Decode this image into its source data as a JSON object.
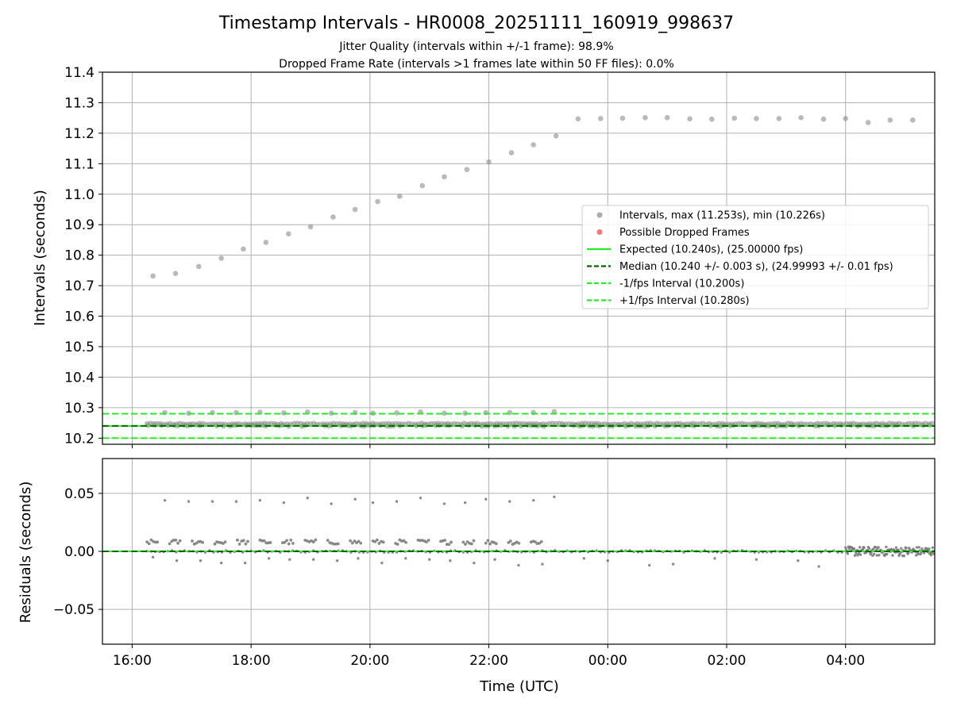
{
  "chart_data": [
    {
      "type": "scatter",
      "title": "Timestamp Intervals - HR0008_20251111_160919_998637",
      "subtitle_lines": [
        "Jitter Quality (intervals within +/-1 frame): 98.9%",
        "Dropped Frame Rate (intervals >1 frames late within 50 FF files): 0.0%"
      ],
      "xlabel": "",
      "ylabel": "Intervals (seconds)",
      "x_unit": "hours since 16:00 UTC",
      "xlim": [
        -0.5,
        13.5
      ],
      "ylim": [
        10.18,
        11.4
      ],
      "yticks": [
        10.2,
        10.3,
        10.4,
        10.5,
        10.6,
        10.7,
        10.8,
        10.9,
        11.0,
        11.1,
        11.2,
        11.3,
        11.4
      ],
      "ytick_labels": [
        "10.2",
        "10.3",
        "10.4",
        "10.5",
        "10.6",
        "10.7",
        "10.8",
        "10.9",
        "11.0",
        "11.1",
        "11.2",
        "11.3",
        "11.4"
      ],
      "grid": true,
      "series": [
        {
          "name": "Intervals, max (11.253s), min (10.226s)",
          "kind": "points",
          "color": "#999999",
          "outlier_points": [
            {
              "x": 0.35,
              "y": 10.732
            },
            {
              "x": 0.73,
              "y": 10.74
            },
            {
              "x": 1.12,
              "y": 10.763
            },
            {
              "x": 1.5,
              "y": 10.79
            },
            {
              "x": 1.87,
              "y": 10.82
            },
            {
              "x": 2.25,
              "y": 10.842
            },
            {
              "x": 2.63,
              "y": 10.87
            },
            {
              "x": 3.0,
              "y": 10.893
            },
            {
              "x": 3.38,
              "y": 10.925
            },
            {
              "x": 3.75,
              "y": 10.95
            },
            {
              "x": 4.13,
              "y": 10.976
            },
            {
              "x": 4.5,
              "y": 10.993
            },
            {
              "x": 4.88,
              "y": 11.028
            },
            {
              "x": 5.25,
              "y": 11.057
            },
            {
              "x": 5.63,
              "y": 11.081
            },
            {
              "x": 6.0,
              "y": 11.106
            },
            {
              "x": 6.38,
              "y": 11.136
            },
            {
              "x": 6.75,
              "y": 11.162
            },
            {
              "x": 7.13,
              "y": 11.191
            },
            {
              "x": 7.5,
              "y": 11.247
            },
            {
              "x": 7.88,
              "y": 11.248
            },
            {
              "x": 8.25,
              "y": 11.249
            },
            {
              "x": 8.63,
              "y": 11.251
            },
            {
              "x": 9.0,
              "y": 11.251
            },
            {
              "x": 9.38,
              "y": 11.247
            },
            {
              "x": 9.75,
              "y": 11.246
            },
            {
              "x": 10.13,
              "y": 11.249
            },
            {
              "x": 10.5,
              "y": 11.248
            },
            {
              "x": 10.88,
              "y": 11.248
            },
            {
              "x": 11.25,
              "y": 11.251
            },
            {
              "x": 11.63,
              "y": 11.246
            },
            {
              "x": 12.0,
              "y": 11.248
            },
            {
              "x": 12.38,
              "y": 11.235
            },
            {
              "x": 12.75,
              "y": 11.243
            },
            {
              "x": 13.13,
              "y": 11.243
            }
          ],
          "high_points": [
            {
              "x": 0.55,
              "y": 10.284
            },
            {
              "x": 0.95,
              "y": 10.282
            },
            {
              "x": 1.35,
              "y": 10.284
            },
            {
              "x": 1.75,
              "y": 10.284
            },
            {
              "x": 2.15,
              "y": 10.285
            },
            {
              "x": 2.55,
              "y": 10.283
            },
            {
              "x": 2.95,
              "y": 10.286
            },
            {
              "x": 3.35,
              "y": 10.282
            },
            {
              "x": 3.75,
              "y": 10.284
            },
            {
              "x": 4.05,
              "y": 10.282
            },
            {
              "x": 4.45,
              "y": 10.283
            },
            {
              "x": 4.85,
              "y": 10.286
            },
            {
              "x": 5.25,
              "y": 10.282
            },
            {
              "x": 5.6,
              "y": 10.282
            },
            {
              "x": 5.95,
              "y": 10.284
            },
            {
              "x": 6.35,
              "y": 10.284
            },
            {
              "x": 6.75,
              "y": 10.284
            },
            {
              "x": 7.1,
              "y": 10.287
            }
          ],
          "dense_band": {
            "x_start": 0.25,
            "x_end": 13.5,
            "y_center": 10.244,
            "note": "clustered intervals near expected value"
          }
        },
        {
          "name": "Possible Dropped Frames",
          "kind": "points",
          "color": "#ff5555",
          "points": []
        },
        {
          "name": "Expected (10.240s), (25.00000 fps)",
          "kind": "hline",
          "y": 10.24,
          "color": "#22ee22",
          "style": "solid"
        },
        {
          "name": "Median (10.240 +/- 0.003 s), (24.99993 +/- 0.01 fps)",
          "kind": "hline",
          "y": 10.24,
          "color": "#006400",
          "style": "dashed"
        },
        {
          "name": "-1/fps Interval (10.200s)",
          "kind": "hline",
          "y": 10.2,
          "color": "#22ee22",
          "style": "dashed"
        },
        {
          "name": "+1/fps Interval (10.280s)",
          "kind": "hline",
          "y": 10.28,
          "color": "#22ee22",
          "style": "dashed"
        }
      ],
      "legend": {
        "placement": "center-right"
      }
    },
    {
      "type": "scatter",
      "xlabel": "Time (UTC)",
      "ylabel": "Residuals (seconds)",
      "x_unit": "hours since 16:00 UTC",
      "xlim": [
        -0.5,
        13.5
      ],
      "ylim": [
        -0.08,
        0.08
      ],
      "yticks": [
        -0.05,
        0.0,
        0.05
      ],
      "ytick_labels": [
        "−0.05",
        "0.00",
        "0.05"
      ],
      "xticks": [
        0,
        2,
        4,
        6,
        8,
        10,
        12
      ],
      "xtick_labels": [
        "16:00",
        "18:00",
        "20:00",
        "22:00",
        "00:00",
        "02:00",
        "04:00"
      ],
      "grid": true,
      "series": [
        {
          "name": "Residuals",
          "kind": "points",
          "color": "#777777",
          "high_points": [
            {
              "x": 0.55,
              "y": 0.044
            },
            {
              "x": 0.95,
              "y": 0.043
            },
            {
              "x": 1.35,
              "y": 0.043
            },
            {
              "x": 1.75,
              "y": 0.043
            },
            {
              "x": 2.15,
              "y": 0.044
            },
            {
              "x": 2.55,
              "y": 0.042
            },
            {
              "x": 2.95,
              "y": 0.046
            },
            {
              "x": 3.35,
              "y": 0.041
            },
            {
              "x": 3.75,
              "y": 0.045
            },
            {
              "x": 4.05,
              "y": 0.042
            },
            {
              "x": 4.45,
              "y": 0.043
            },
            {
              "x": 4.85,
              "y": 0.046
            },
            {
              "x": 5.25,
              "y": 0.041
            },
            {
              "x": 5.6,
              "y": 0.042
            },
            {
              "x": 5.95,
              "y": 0.045
            },
            {
              "x": 6.35,
              "y": 0.043
            },
            {
              "x": 6.75,
              "y": 0.044
            },
            {
              "x": 7.1,
              "y": 0.047
            }
          ],
          "low_points": [
            {
              "x": 0.35,
              "y": -0.005
            },
            {
              "x": 0.75,
              "y": -0.008
            },
            {
              "x": 1.15,
              "y": -0.008
            },
            {
              "x": 1.5,
              "y": -0.01
            },
            {
              "x": 1.9,
              "y": -0.01
            },
            {
              "x": 2.3,
              "y": -0.006
            },
            {
              "x": 2.65,
              "y": -0.007
            },
            {
              "x": 3.05,
              "y": -0.007
            },
            {
              "x": 3.45,
              "y": -0.008
            },
            {
              "x": 3.8,
              "y": -0.006
            },
            {
              "x": 4.2,
              "y": -0.01
            },
            {
              "x": 4.6,
              "y": -0.006
            },
            {
              "x": 5.0,
              "y": -0.007
            },
            {
              "x": 5.35,
              "y": -0.008
            },
            {
              "x": 5.75,
              "y": -0.01
            },
            {
              "x": 6.1,
              "y": -0.007
            },
            {
              "x": 6.5,
              "y": -0.012
            },
            {
              "x": 6.9,
              "y": -0.011
            },
            {
              "x": 7.6,
              "y": -0.006
            },
            {
              "x": 8.0,
              "y": -0.008
            },
            {
              "x": 8.7,
              "y": -0.012
            },
            {
              "x": 9.1,
              "y": -0.011
            },
            {
              "x": 9.8,
              "y": -0.006
            },
            {
              "x": 10.5,
              "y": -0.007
            },
            {
              "x": 11.2,
              "y": -0.008
            },
            {
              "x": 11.55,
              "y": -0.013
            }
          ],
          "clusters_upper": {
            "x_start": 0.25,
            "x_end": 7.0,
            "y": 0.008,
            "spacing_hours": 0.38
          },
          "clusters_zero": {
            "x_start": 0.25,
            "x_end": 12.0,
            "y": 0.0
          },
          "dense_band": {
            "x_start": 12.0,
            "x_end": 13.5,
            "y_center": 0.0,
            "spread": 0.004
          }
        },
        {
          "name": "Expected",
          "kind": "hline",
          "y": 0.0,
          "color": "#22ee22",
          "style": "solid"
        },
        {
          "name": "Median",
          "kind": "hline",
          "y": 0.0,
          "color": "#006400",
          "style": "dashed"
        }
      ]
    }
  ]
}
